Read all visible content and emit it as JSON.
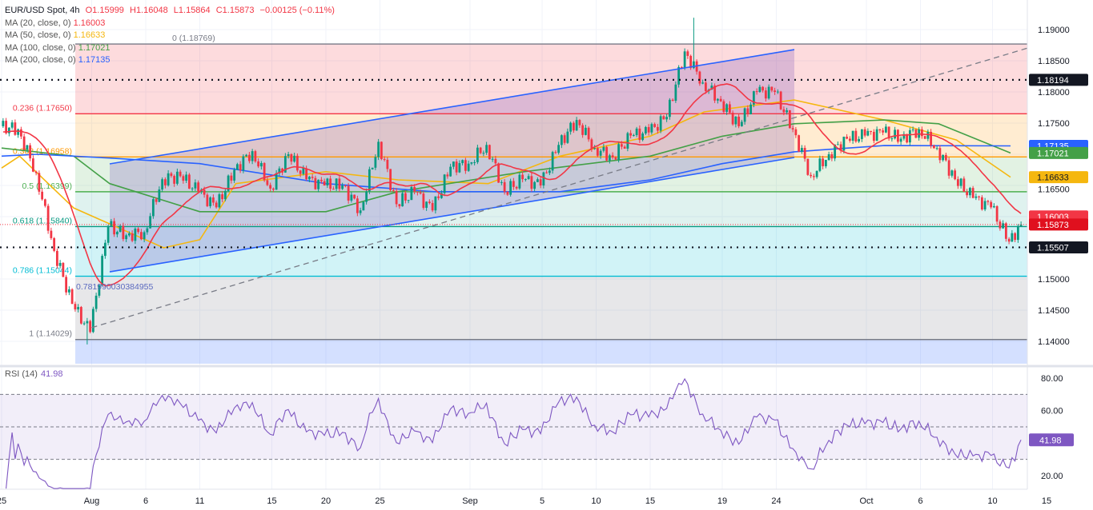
{
  "header": {
    "symbol": "EUR/USD Spot, 4h",
    "open": "O1.15999",
    "high": "H1.16048",
    "low": "L1.15864",
    "close": "C1.15873",
    "change": "−0.00125 (−0.11%)"
  },
  "indicators": [
    {
      "label": "MA (20, close, 0)",
      "value": "1.16003",
      "color": "#f23645"
    },
    {
      "label": "MA (50, close, 0)",
      "value": "1.16633",
      "color": "#f5b70f"
    },
    {
      "label": "MA (100, close, 0)",
      "value": "1.17021",
      "color": "#43a047"
    },
    {
      "label": "MA (200, close, 0)",
      "value": "1.17135",
      "color": "#2962ff"
    }
  ],
  "rsi_legend": {
    "label": "RSI (14)",
    "value": "41.98"
  },
  "chart_data": {
    "type": "candlestick",
    "timeframe": "4h",
    "colors": {
      "up": "#089981",
      "down": "#f23645"
    },
    "price_axis": {
      "range": [
        1.1355,
        1.1944
      ],
      "labels": [
        "1.19000",
        "1.18500",
        "1.18000",
        "1.17500",
        "1.16500",
        "1.15000",
        "1.14500",
        "1.14000"
      ]
    },
    "date_axis": {
      "labels": [
        {
          "text": "25",
          "day": "Jul 25"
        },
        {
          "text": "Aug",
          "day": "Aug 1"
        },
        {
          "text": "6",
          "day": "Aug 6"
        },
        {
          "text": "11",
          "day": "Aug 11"
        },
        {
          "text": "15",
          "day": "Aug 15"
        },
        {
          "text": "20",
          "day": "Aug 20"
        },
        {
          "text": "25",
          "day": "Aug 25"
        },
        {
          "text": "Sep",
          "day": "Sep 1"
        },
        {
          "text": "5",
          "day": "Sep 5"
        },
        {
          "text": "10",
          "day": "Sep 10"
        },
        {
          "text": "15",
          "day": "Sep 15"
        },
        {
          "text": "19",
          "day": "Sep 19"
        },
        {
          "text": "24",
          "day": "Sep 24"
        },
        {
          "text": "Oct",
          "day": "Oct 1"
        },
        {
          "text": "6",
          "day": "Oct 6"
        },
        {
          "text": "10",
          "day": "Oct 10"
        },
        {
          "text": "15",
          "day": "Oct 15"
        }
      ]
    },
    "daily_closes": [
      {
        "day": "Jul 25",
        "close": 1.174
      },
      {
        "day": "Jul 28",
        "close": 1.167
      },
      {
        "day": "Jul 29",
        "close": 1.1545
      },
      {
        "day": "Jul 30",
        "close": 1.146
      },
      {
        "day": "Jul 31",
        "close": 1.1415,
        "low": 1.1395
      },
      {
        "day": "Aug 1",
        "close": 1.1585
      },
      {
        "day": "Aug 4",
        "close": 1.157
      },
      {
        "day": "Aug 5",
        "close": 1.1575
      },
      {
        "day": "Aug 6",
        "close": 1.166
      },
      {
        "day": "Aug 7",
        "close": 1.1665
      },
      {
        "day": "Aug 8",
        "close": 1.164
      },
      {
        "day": "Aug 11",
        "close": 1.1615
      },
      {
        "day": "Aug 12",
        "close": 1.1675
      },
      {
        "day": "Aug 13",
        "close": 1.1705
      },
      {
        "day": "Aug 14",
        "close": 1.1645
      },
      {
        "day": "Aug 15",
        "close": 1.17
      },
      {
        "day": "Aug 18",
        "close": 1.166
      },
      {
        "day": "Aug 19",
        "close": 1.165
      },
      {
        "day": "Aug 20",
        "close": 1.165
      },
      {
        "day": "Aug 21",
        "close": 1.161
      },
      {
        "day": "Aug 22",
        "close": 1.172
      },
      {
        "day": "Aug 25",
        "close": 1.162
      },
      {
        "day": "Aug 26",
        "close": 1.164
      },
      {
        "day": "Aug 27",
        "close": 1.161
      },
      {
        "day": "Aug 28",
        "close": 1.168
      },
      {
        "day": "Aug 29",
        "close": 1.1685
      },
      {
        "day": "Sep 1",
        "close": 1.1715
      },
      {
        "day": "Sep 2",
        "close": 1.164
      },
      {
        "day": "Sep 3",
        "close": 1.166
      },
      {
        "day": "Sep 4",
        "close": 1.165
      },
      {
        "day": "Sep 5",
        "close": 1.1715
      },
      {
        "day": "Sep 8",
        "close": 1.1755
      },
      {
        "day": "Sep 9",
        "close": 1.171
      },
      {
        "day": "Sep 10",
        "close": 1.1695
      },
      {
        "day": "Sep 11",
        "close": 1.173
      },
      {
        "day": "Sep 12",
        "close": 1.1735
      },
      {
        "day": "Sep 15",
        "close": 1.176
      },
      {
        "day": "Sep 16",
        "close": 1.1865
      },
      {
        "day": "Sep 17",
        "close": 1.1815,
        "high": 1.1919
      },
      {
        "day": "Sep 18",
        "close": 1.1785
      },
      {
        "day": "Sep 19",
        "close": 1.1745
      },
      {
        "day": "Sep 22",
        "close": 1.18
      },
      {
        "day": "Sep 23",
        "close": 1.18
      },
      {
        "day": "Sep 24",
        "close": 1.174
      },
      {
        "day": "Sep 25",
        "close": 1.1665
      },
      {
        "day": "Sep 26",
        "close": 1.17
      },
      {
        "day": "Sep 29",
        "close": 1.1725
      },
      {
        "day": "Sep 30",
        "close": 1.173
      },
      {
        "day": "Oct 1",
        "close": 1.1735
      },
      {
        "day": "Oct 2",
        "close": 1.1725
      },
      {
        "day": "Oct 3",
        "close": 1.174
      },
      {
        "day": "Oct 6",
        "close": 1.171
      },
      {
        "day": "Oct 7",
        "close": 1.166
      },
      {
        "day": "Oct 8",
        "close": 1.163
      },
      {
        "day": "Oct 9",
        "close": 1.1615
      },
      {
        "day": "Oct 10",
        "close": 1.156
      },
      {
        "day": "Oct 13",
        "close": 1.15873
      }
    ],
    "moving_averages": [
      {
        "name": "MA 50",
        "color": "#f5b70f",
        "points": [
          [
            "Jul 25",
            1.1678
          ],
          [
            "Jul 28",
            1.1697
          ],
          [
            "Jul 31",
            1.1614
          ],
          [
            "Aug 7",
            1.155
          ],
          [
            "Aug 11",
            1.1563
          ],
          [
            "Aug 13",
            1.1653
          ],
          [
            "Aug 20",
            1.1672
          ],
          [
            "Aug 26",
            1.1659
          ],
          [
            "Sep 2",
            1.1653
          ],
          [
            "Sep 8",
            1.1697
          ],
          [
            "Sep 15",
            1.1729
          ],
          [
            "Sep 18",
            1.1768
          ],
          [
            "Sep 25",
            1.1787
          ],
          [
            "Oct 2",
            1.1755
          ],
          [
            "Oct 8",
            1.1723
          ],
          [
            "Oct 13",
            1.16633
          ]
        ]
      },
      {
        "name": "MA 100",
        "color": "#43a047",
        "points": [
          [
            "Jul 25",
            1.171
          ],
          [
            "Jul 31",
            1.1697
          ],
          [
            "Aug 4",
            1.1653
          ],
          [
            "Aug 11",
            1.1608
          ],
          [
            "Aug 20",
            1.1608
          ],
          [
            "Aug 26",
            1.164
          ],
          [
            "Sep 4",
            1.1672
          ],
          [
            "Sep 15",
            1.1697
          ],
          [
            "Sep 19",
            1.1729
          ],
          [
            "Sep 25",
            1.1749
          ],
          [
            "Oct 2",
            1.1755
          ],
          [
            "Oct 7",
            1.1749
          ],
          [
            "Oct 13",
            1.17021
          ]
        ]
      },
      {
        "name": "MA 200",
        "color": "#2962ff",
        "points": [
          [
            "Jul 25",
            1.1697
          ],
          [
            "Jul 29",
            1.17
          ],
          [
            "Aug 4",
            1.1694
          ],
          [
            "Aug 11",
            1.1685
          ],
          [
            "Aug 20",
            1.1653
          ],
          [
            "Aug 28",
            1.164
          ],
          [
            "Sep 8",
            1.164
          ],
          [
            "Sep 15",
            1.1659
          ],
          [
            "Sep 19",
            1.1685
          ],
          [
            "Sep 25",
            1.1704
          ],
          [
            "Oct 2",
            1.1714
          ],
          [
            "Oct 13",
            1.17135
          ]
        ]
      }
    ],
    "ma20_color": "#f23645",
    "fibonacci": {
      "start_day": "Jul 31",
      "levels": [
        {
          "ratio": "0",
          "price": 1.18769,
          "label": "0 (1.18769)",
          "color": "#787b86",
          "fill": "rgba(242,54,69,0.18)"
        },
        {
          "ratio": "0.236",
          "price": 1.1765,
          "label": "0.236 (1.17650)",
          "color": "#f23645",
          "fill": "rgba(255,152,0,0.18)"
        },
        {
          "ratio": "0.382",
          "price": 1.16958,
          "label": "0.382 (1.16958)",
          "color": "#ff9800",
          "fill": "rgba(76,175,80,0.16)"
        },
        {
          "ratio": "0.5",
          "price": 1.16399,
          "label": "0.5 (1.16399)",
          "color": "#4caf50",
          "fill": "rgba(8,153,129,0.13)"
        },
        {
          "ratio": "0.618",
          "price": 1.1584,
          "label": "0.618 (1.15840)",
          "color": "#089981",
          "fill": "rgba(0,188,212,0.18)"
        },
        {
          "ratio": "0.786",
          "price": 1.15044,
          "label": "0.786 (1.15044)",
          "color": "#00bcd4",
          "fill": "rgba(120,123,134,0.18)"
        },
        {
          "ratio": "1",
          "price": 1.14029,
          "label": "1 (1.14029)",
          "color": "#787b86",
          "fill": "rgba(41,98,255,0.2)"
        }
      ]
    },
    "channel": {
      "upper": [
        [
          "Aug 4",
          1.16846
        ],
        [
          "Sep 25",
          1.18679
        ]
      ],
      "lower": [
        [
          "Aug 4",
          1.15115
        ],
        [
          "Sep 25",
          1.16949
        ]
      ],
      "color": "#2962ff",
      "fill": "rgba(103,58,183,0.22)",
      "label": "0.781990030384955"
    },
    "trend_line": {
      "points": [
        [
          "Aug 1",
          1.1422
        ],
        [
          "Oct 6",
          1.1819
        ]
      ],
      "color": "#787b86",
      "style": "dashed"
    },
    "horizontal_levels": [
      {
        "price": 1.18194,
        "label": "1.18194",
        "color": "#131722",
        "style": "dotted"
      },
      {
        "price": 1.15507,
        "label": "1.15507",
        "color": "#131722",
        "style": "dotted"
      }
    ],
    "price_badges": [
      {
        "label": "1.18194",
        "price": 1.18194,
        "bg": "#131722"
      },
      {
        "label": "1.17135",
        "price": 1.17135,
        "bg": "#2962ff"
      },
      {
        "label": "1.17021",
        "price": 1.17021,
        "bg": "#43a047"
      },
      {
        "label": "1.16633",
        "price": 1.16633,
        "bg": "#f5b70f",
        "fg": "#131722"
      },
      {
        "label": "1.16003",
        "price": 1.16003,
        "bg": "#f23645"
      },
      {
        "label": "1.15873",
        "price": 1.15873,
        "bg": "#e0101e"
      },
      {
        "label": "1.15507",
        "price": 1.15507,
        "bg": "#131722"
      }
    ],
    "last_price": 1.15873,
    "rsi": {
      "period": 14,
      "value": 41.98,
      "range": [
        10,
        85
      ],
      "bands": [
        30,
        50,
        70
      ],
      "axis_labels": [
        "80.00",
        "60.00",
        "20.00"
      ],
      "color": "#7e57c2",
      "badge": "41.98"
    }
  }
}
